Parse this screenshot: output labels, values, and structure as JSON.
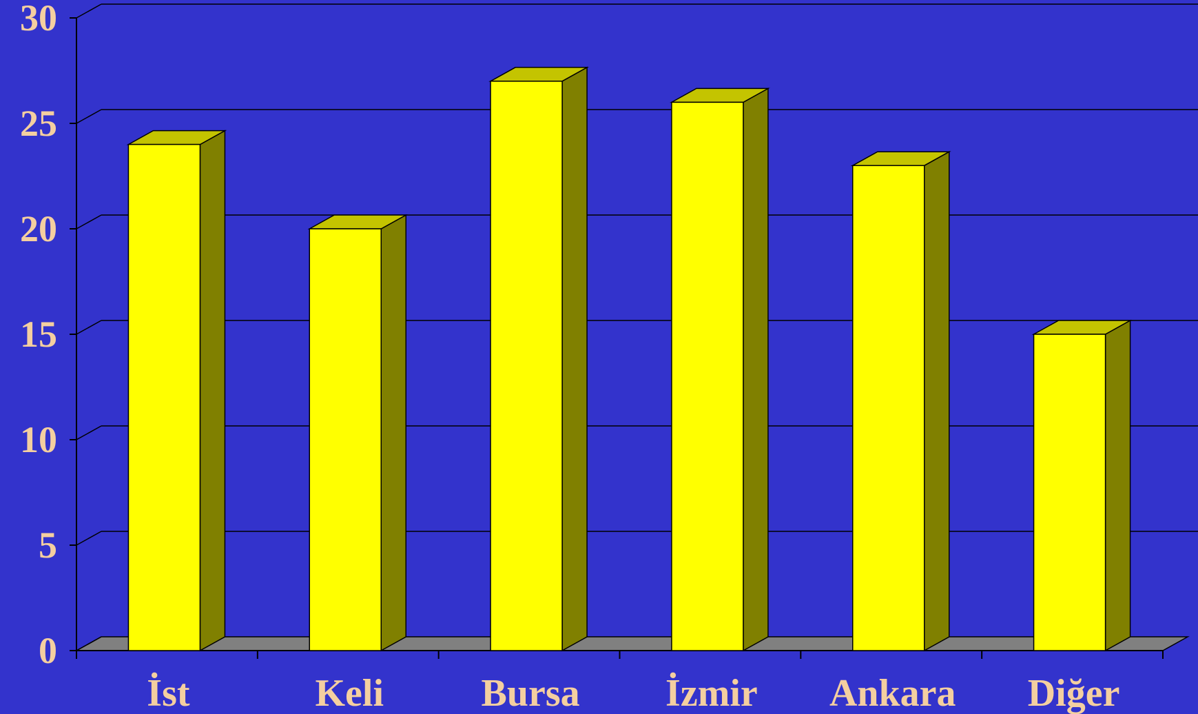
{
  "chart_data": {
    "type": "bar",
    "style": "3d-column",
    "categories": [
      "İst",
      "Keli",
      "Bursa",
      "İzmir",
      "Ankara",
      "Diğer"
    ],
    "values": [
      24,
      20,
      27,
      26,
      23,
      15
    ],
    "ylim": [
      0,
      30
    ],
    "yticks": [
      0,
      5,
      10,
      15,
      20,
      25,
      30
    ],
    "grid": true,
    "title": "",
    "xlabel": "",
    "ylabel": "",
    "colors": {
      "background": "#3333cc",
      "bar_front": "#ffff00",
      "bar_top": "#c4c400",
      "bar_side": "#808000",
      "floor": "#808080",
      "grid": "#000000",
      "label": "#f4cfa0"
    }
  }
}
